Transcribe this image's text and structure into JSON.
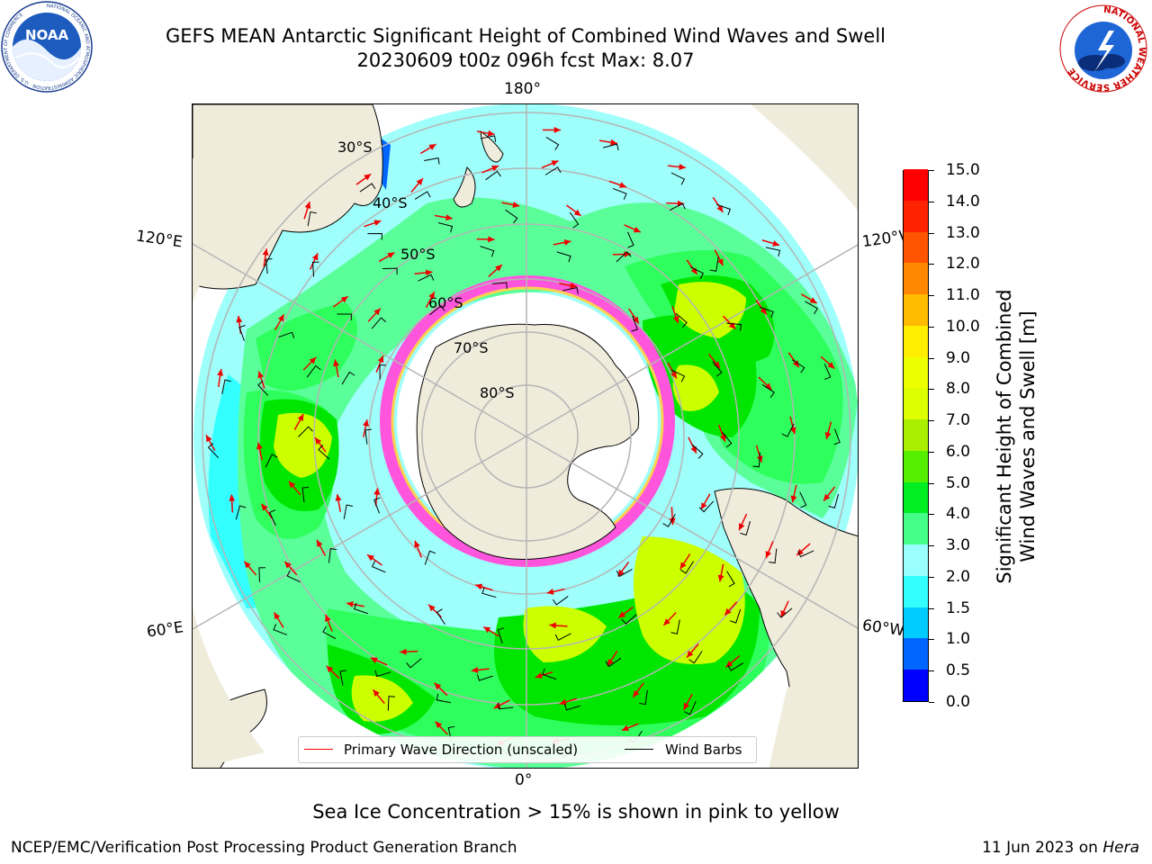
{
  "title": {
    "line1": "GEFS MEAN Antarctic Significant Height of Combined Wind Waves and Swell",
    "line2": "20230609 t00z 096h fcst   Max: 8.07"
  },
  "logos": {
    "left": {
      "name": "noaa-logo",
      "text": "NOAA",
      "ring_text": "NATIONAL OCEANIC AND ATMOSPHERIC ADMINISTRATION · U.S. DEPARTMENT OF COMMERCE"
    },
    "right": {
      "name": "nws-logo",
      "ring_text": "NATIONAL WEATHER SERVICE"
    }
  },
  "map": {
    "projection": "south-polar-stereographic",
    "longitude_labels": {
      "top": "180°",
      "bottom": "0°",
      "left_upper": "120°E",
      "left_lower": "60°E",
      "right_upper": "120°W",
      "right_lower": "60°W"
    },
    "latitude_labels": [
      "30°S",
      "40°S",
      "50°S",
      "60°S",
      "70°S",
      "80°S"
    ],
    "colors": {
      "land": "#efecdc",
      "ocean_low": "#9efffb",
      "wave_2_3": "#5aff9a",
      "wave_3_4": "#2eff5c",
      "wave_4_5": "#00e600",
      "wave_5_6": "#66ee00",
      "wave_6_8": "#ccff00",
      "sea_ice_pink": "#ff55dd",
      "sea_ice_yellow": "#ffd050",
      "grid": "#b5b5b5",
      "arrow": "#ee0000",
      "barb": "#000000"
    }
  },
  "legend": {
    "primary_wave_label": "Primary Wave Direction (unscaled)",
    "primary_wave_color": "#ff0000",
    "wind_barb_label": "Wind Barbs",
    "wind_barb_color": "#000000"
  },
  "colorbar": {
    "title_line1": "Significant Height of Combined",
    "title_line2": "Wind Waves and Swell [m]",
    "ticks": [
      "0.0",
      "0.5",
      "1.0",
      "1.5",
      "2.0",
      "3.0",
      "4.0",
      "5.0",
      "6.0",
      "7.0",
      "8.0",
      "9.0",
      "10.0",
      "11.0",
      "12.0",
      "13.0",
      "14.0",
      "15.0"
    ],
    "colors": [
      "#0000ff",
      "#0066ff",
      "#00ccff",
      "#33ffff",
      "#99ffff",
      "#44ff88",
      "#00ee22",
      "#55ee00",
      "#aaee00",
      "#ddff00",
      "#eeff00",
      "#ffee00",
      "#ffbb00",
      "#ff8800",
      "#ff5500",
      "#ff2200",
      "#ff0000"
    ]
  },
  "sea_ice_note": "Sea Ice Concentration > 15% is shown in pink to yellow",
  "footer": {
    "left": "NCEP/EMC/Verification Post Processing Product Generation Branch",
    "right_prefix": "11 Jun 2023 on ",
    "right_machine": "Hera"
  }
}
